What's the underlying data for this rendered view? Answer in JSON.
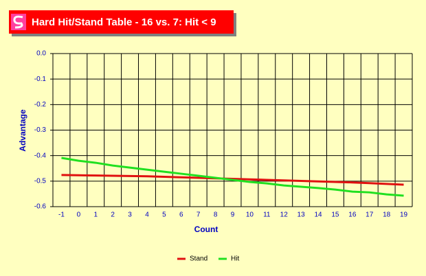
{
  "chart_data": {
    "type": "line",
    "title": "Hard Hit/Stand Table - 16 vs. 7: Hit < 9",
    "x_label": "Count",
    "y_label": "Advantage",
    "categories": [
      "-1",
      "0",
      "1",
      "2",
      "3",
      "4",
      "5",
      "6",
      "7",
      "8",
      "9",
      "10",
      "11",
      "12",
      "13",
      "14",
      "15",
      "16",
      "17",
      "18",
      "19"
    ],
    "series": [
      {
        "name": "Stand",
        "color": "#e01010",
        "values": [
          -0.476,
          -0.477,
          -0.478,
          -0.479,
          -0.48,
          -0.481,
          -0.483,
          -0.485,
          -0.487,
          -0.489,
          -0.491,
          -0.493,
          -0.495,
          -0.497,
          -0.499,
          -0.501,
          -0.503,
          -0.505,
          -0.508,
          -0.511,
          -0.514
        ]
      },
      {
        "name": "Hit",
        "color": "#20e020",
        "values": [
          -0.409,
          -0.42,
          -0.428,
          -0.439,
          -0.447,
          -0.455,
          -0.463,
          -0.471,
          -0.479,
          -0.487,
          -0.495,
          -0.503,
          -0.509,
          -0.517,
          -0.522,
          -0.527,
          -0.533,
          -0.541,
          -0.544,
          -0.552,
          -0.557
        ]
      }
    ],
    "ylim": [
      -0.6,
      0
    ],
    "yticks": [
      {
        "value": 0,
        "label": "0.0"
      },
      -0.1,
      -0.2,
      -0.3,
      -0.4,
      -0.5,
      -0.6
    ],
    "grid": true,
    "legend": "bottom"
  }
}
